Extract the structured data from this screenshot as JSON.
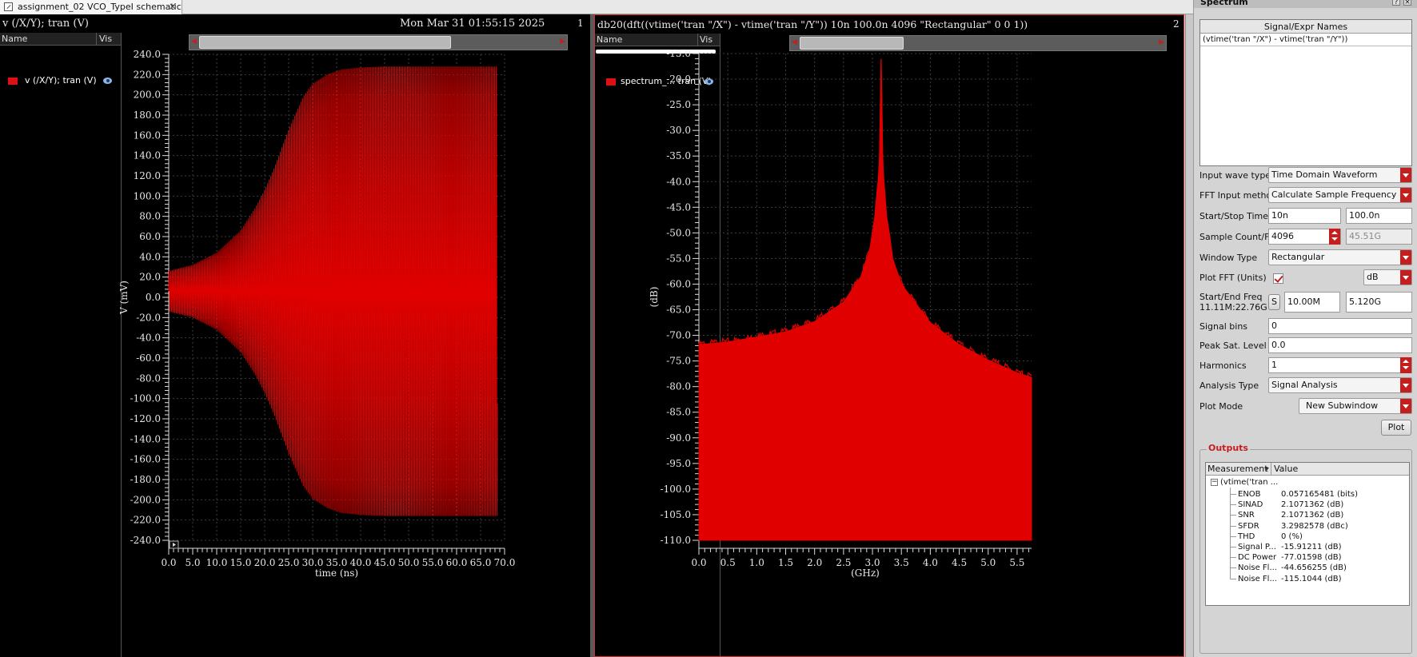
{
  "tab": {
    "label": "assignment_02 VCO_TypeI schematic",
    "close": "×"
  },
  "win1": {
    "title": "v (/X/Y); tran (V)",
    "date": "Mon Mar 31 01:55:15 2025",
    "num": "1",
    "legend_name_header": "Name",
    "legend_vis_header": "Vis",
    "legend_item": "v (/X/Y); tran (V)"
  },
  "win2": {
    "title": "db20(dft((vtime('tran \"/X\") - vtime('tran \"/Y\"))  10n 100.0n 4096 \"Rectangular\" 0 0 1))",
    "num": "2",
    "legend_name_header": "Name",
    "legend_vis_header": "Vis",
    "legend_item": "spectrum_... tran (V)"
  },
  "chart_data": [
    {
      "type": "line",
      "title": "v (/X/Y); tran (V)",
      "xlabel": "time (ns)",
      "ylabel": "V (mV)",
      "xlim": [
        0,
        70
      ],
      "ylim": [
        -240,
        240
      ],
      "xticks": [
        "0.0",
        "5.0",
        "10.0",
        "15.0",
        "20.0",
        "25.0",
        "30.0",
        "35.0",
        "40.0",
        "45.0",
        "50.0",
        "55.0",
        "60.0",
        "65.0",
        "70.0"
      ],
      "yticks": [
        "240.0",
        "220.0",
        "200.0",
        "180.0",
        "160.0",
        "140.0",
        "120.0",
        "100.0",
        "80.0",
        "60.0",
        "40.0",
        "20.0",
        "0.0",
        "-20.0",
        "-40.0",
        "-60.0",
        "-80.0",
        "-100.0",
        "-120.0",
        "-140.0",
        "-160.0",
        "-180.0",
        "-200.0",
        "-220.0",
        "-240.0"
      ],
      "series": [
        {
          "name": "v (/X/Y); tran (V)",
          "color": "#e00000",
          "envelope_t": [
            0,
            5,
            10,
            15,
            18,
            20,
            22,
            25,
            28,
            30,
            33,
            36,
            40,
            45,
            50,
            55,
            60,
            65,
            68.5
          ],
          "envelope_amp": [
            20,
            26,
            38,
            60,
            82,
            100,
            122,
            160,
            192,
            205,
            214,
            219,
            221,
            222,
            222,
            222,
            222,
            222,
            222
          ]
        }
      ],
      "grid": true
    },
    {
      "type": "line",
      "title": "db20(dft((vtime('tran \"/X\") - vtime('tran \"/Y\"))  10n 100.0n 4096 \"Rectangular\" 0 0 1))",
      "xlabel": "(GHz)",
      "ylabel": "(dB)",
      "xlim": [
        0,
        5.75
      ],
      "ylim": [
        -110,
        -15
      ],
      "xticks": [
        "0.0",
        "0.5",
        "1.0",
        "1.5",
        "2.0",
        "2.5",
        "3.0",
        "3.5",
        "4.0",
        "4.5",
        "5.0",
        "5.5"
      ],
      "yticks": [
        "-15.0",
        "-20.0",
        "-25.0",
        "-30.0",
        "-35.0",
        "-40.0",
        "-45.0",
        "-50.0",
        "-55.0",
        "-60.0",
        "-65.0",
        "-70.0",
        "-75.0",
        "-80.0",
        "-85.0",
        "-90.0",
        "-95.0",
        "-100.0",
        "-105.0",
        "-110.0"
      ],
      "series": [
        {
          "name": "spectrum_... tran (V)",
          "color": "#e00000",
          "x": [
            0.0,
            0.5,
            1.0,
            1.5,
            2.0,
            2.5,
            2.8,
            2.95,
            3.05,
            3.12,
            3.15,
            3.18,
            3.25,
            3.35,
            3.5,
            4.0,
            4.5,
            5.0,
            5.5,
            5.75
          ],
          "y": [
            -71.8,
            -71.3,
            -70.3,
            -69.3,
            -67.3,
            -63.5,
            -58.5,
            -53.5,
            -46.0,
            -37.0,
            -16.0,
            -37.0,
            -47.5,
            -55.0,
            -60.0,
            -67.5,
            -71.8,
            -74.8,
            -77.3,
            -78.2
          ]
        }
      ],
      "grid": true
    }
  ],
  "spectrum": {
    "title": "Spectrum",
    "help": "?",
    "close": "×",
    "signal_header": "Signal/Expr Names",
    "signal_row": "(vtime('tran \"/X\") - vtime('tran \"/Y\"))",
    "fields": {
      "input_wave_type": {
        "label": "Input wave type",
        "value": "Time Domain Waveform"
      },
      "fft_input_method": {
        "label": "FFT Input method",
        "value": "Calculate Sample Frequency"
      },
      "start_stop_time": {
        "label": "Start/Stop Time",
        "start": "10n",
        "stop": "100.0n"
      },
      "sample_count": {
        "label": "Sample Count/Freq",
        "count": "4096",
        "freq": "45.51G"
      },
      "window_type": {
        "label": "Window Type",
        "value": "Rectangular"
      },
      "plot_fft": {
        "label": "Plot FFT (Units)",
        "units": "dB"
      },
      "start_end_freq": {
        "label": "Start/End Freq",
        "range": "11.11M:22.76G",
        "s_button": "S",
        "start": "10.00M",
        "end": "5.120G"
      },
      "signal_bins": {
        "label": "Signal bins",
        "value": "0"
      },
      "peak_sat_level": {
        "label": "Peak Sat. Level",
        "value": "0.0"
      },
      "harmonics": {
        "label": "Harmonics",
        "value": "1"
      },
      "analysis_type": {
        "label": "Analysis Type",
        "value": "Signal Analysis"
      },
      "plot_mode": {
        "label": "Plot Mode",
        "value": "New Subwindow"
      }
    },
    "plot_button": "Plot",
    "outputs": {
      "title": "Outputs",
      "col_measurement": "Measurement",
      "col_value": "Value",
      "root": "(vtime('tran ...",
      "rows": [
        {
          "name": "ENOB",
          "value": "0.057165481 (bits)"
        },
        {
          "name": "SINAD",
          "value": "2.1071362 (dB)"
        },
        {
          "name": "SNR",
          "value": "2.1071362 (dB)"
        },
        {
          "name": "SFDR",
          "value": "3.2982578 (dBc)"
        },
        {
          "name": "THD",
          "value": "0 (%)"
        },
        {
          "name": "Signal P...",
          "value": "-15.91211 (dB)"
        },
        {
          "name": "DC Power",
          "value": "-77.01598 (dB)"
        },
        {
          "name": "Noise Fl...",
          "value": "-44.656255 (dB)"
        },
        {
          "name": "Noise Fl...",
          "value": "-115.1044 (dB)"
        }
      ]
    }
  }
}
